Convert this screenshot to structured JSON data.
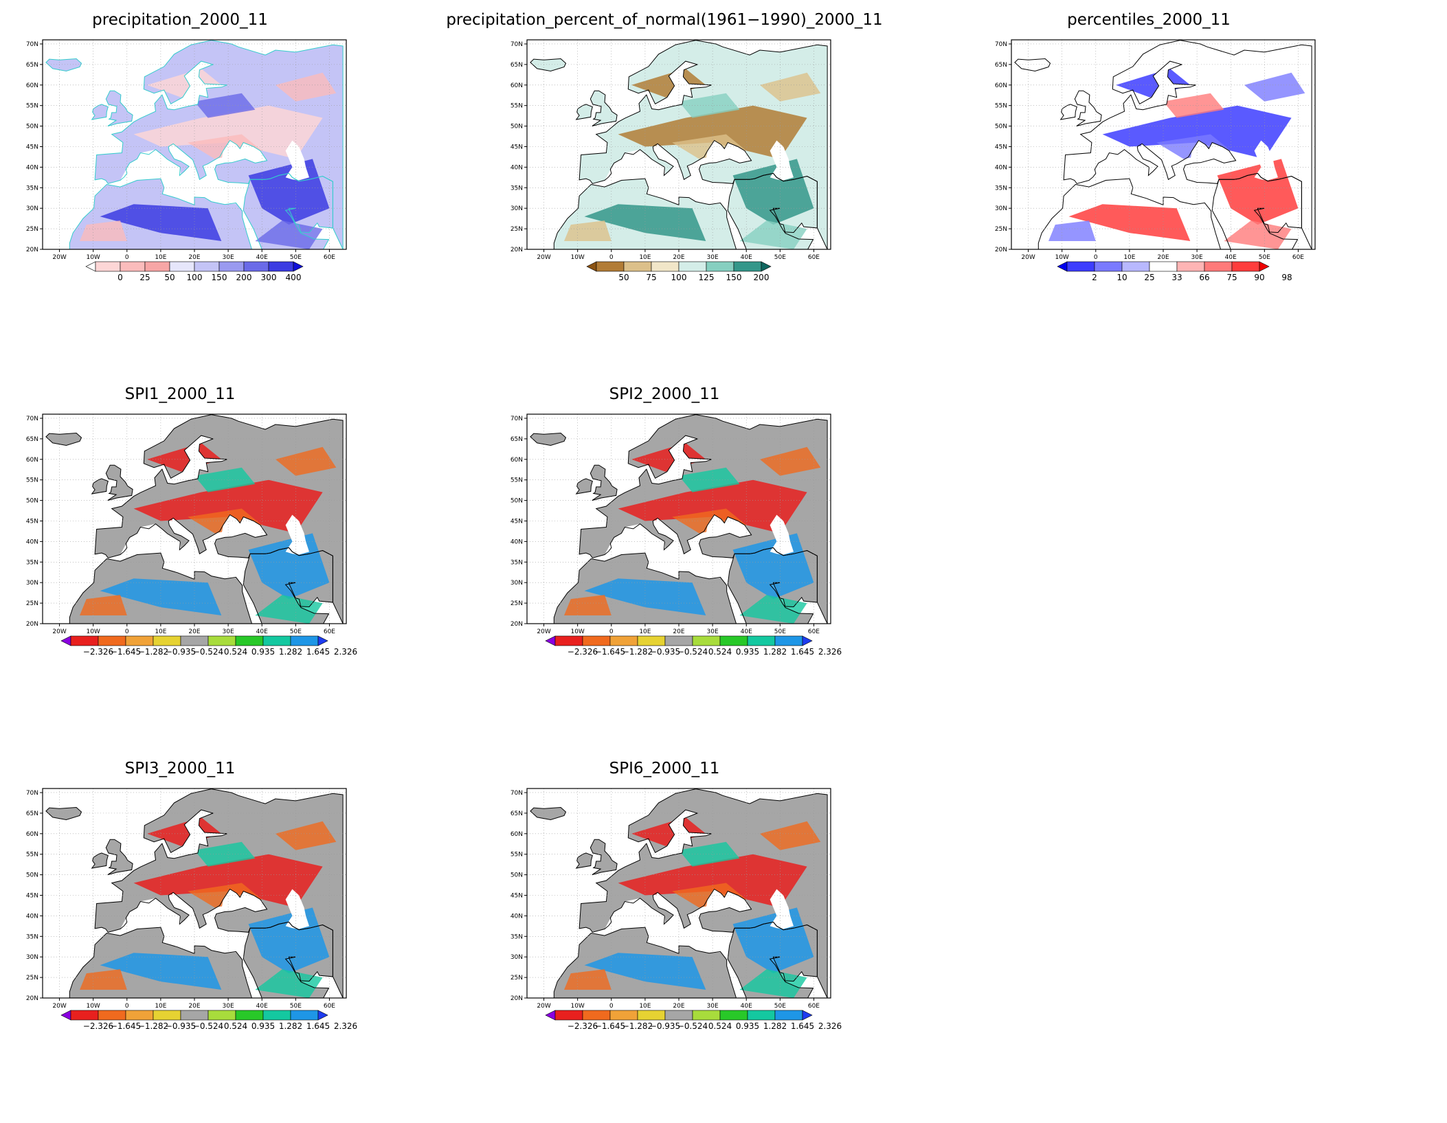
{
  "lat_ticks": [
    "70N",
    "65N",
    "60N",
    "55N",
    "50N",
    "45N",
    "40N",
    "35N",
    "30N",
    "25N",
    "20N"
  ],
  "lon_ticks": [
    "20W",
    "10W",
    "0",
    "10E",
    "20E",
    "30E",
    "40E",
    "50E",
    "60E"
  ],
  "colors": {
    "map_background": "#ffffff",
    "coast_precip": "#33cccc",
    "coast_other": "#000000",
    "grid": "#9a9a9a"
  },
  "colorbars": {
    "precipitation": {
      "labels": [
        "0",
        "25",
        "50",
        "100",
        "150",
        "200",
        "300",
        "400"
      ],
      "colors": [
        "#ffffff",
        "#fdd6d6",
        "#fbbcbc",
        "#f7a6a6",
        "#e6e6fb",
        "#c4c4f6",
        "#9a9af0",
        "#6a6ae8",
        "#3c3ce2",
        "#1010d8"
      ]
    },
    "percent_normal": {
      "labels": [
        "50",
        "75",
        "100",
        "125",
        "150",
        "200"
      ],
      "colors": [
        "#8b5313",
        "#b27c36",
        "#dcc08a",
        "#f1e6c8",
        "#d4ede8",
        "#86cfc0",
        "#34978a",
        "#0f665f"
      ]
    },
    "percentiles": {
      "labels": [
        "2",
        "10",
        "25",
        "33",
        "66",
        "75",
        "90",
        "98"
      ],
      "colors": [
        "#0000ee",
        "#3d3dff",
        "#7a7aff",
        "#b8b8ff",
        "#ffffff",
        "#ffb5b5",
        "#ff7a7a",
        "#ff3d3d",
        "#ee0000"
      ]
    },
    "spi": {
      "labels": [
        "−2.326",
        "−1.645",
        "−1.282",
        "−0.935",
        "−0.524",
        "0.524",
        "0.935",
        "1.282",
        "1.645",
        "2.326"
      ],
      "colors": [
        "#8a00e0",
        "#e8201e",
        "#f06a1e",
        "#f0a238",
        "#e6d232",
        "#a6a6a6",
        "#a8dc3c",
        "#28c828",
        "#14c8a0",
        "#1e96e6",
        "#1e3cf0"
      ]
    }
  },
  "panels": [
    {
      "id": "precipitation",
      "title": "precipitation_2000_11",
      "scale": "precipitation",
      "field_values": [
        120,
        80,
        40,
        20,
        60,
        30,
        200,
        150,
        300,
        90
      ]
    },
    {
      "id": "percent_normal",
      "title": "precipitation_percent_of_normal(1961−1990)_2000_11",
      "scale": "percent_normal",
      "field_values": [
        40,
        60,
        80,
        110,
        140,
        180,
        220,
        30,
        50,
        120
      ]
    },
    {
      "id": "percentiles",
      "title": "percentiles_2000_11",
      "scale": "percentiles",
      "field_values": [
        5,
        15,
        28,
        50,
        70,
        85,
        95,
        99,
        8,
        92
      ]
    },
    {
      "id": "spi1",
      "title": "SPI1_2000_11",
      "scale": "spi",
      "field_values": [
        -2.4,
        -1.8,
        -1.4,
        -1.0,
        -0.6,
        0.0,
        0.7,
        1.1,
        1.5,
        2.0
      ]
    },
    {
      "id": "spi2",
      "title": "SPI2_2000_11",
      "scale": "spi",
      "field_values": [
        -2.0,
        -1.5,
        -1.1,
        -0.8,
        -0.3,
        0.2,
        0.8,
        1.2,
        1.7,
        2.4
      ]
    },
    {
      "id": "spi3",
      "title": "SPI3_2000_11",
      "scale": "spi",
      "field_values": [
        -1.9,
        -1.3,
        -1.0,
        -0.7,
        0.0,
        0.6,
        1.0,
        1.4,
        1.9,
        2.2
      ]
    },
    {
      "id": "spi6",
      "title": "SPI6_2000_11",
      "scale": "spi",
      "field_values": [
        -2.2,
        -1.6,
        -1.2,
        -0.9,
        -0.4,
        0.1,
        0.9,
        1.3,
        1.6,
        2.1
      ]
    }
  ]
}
